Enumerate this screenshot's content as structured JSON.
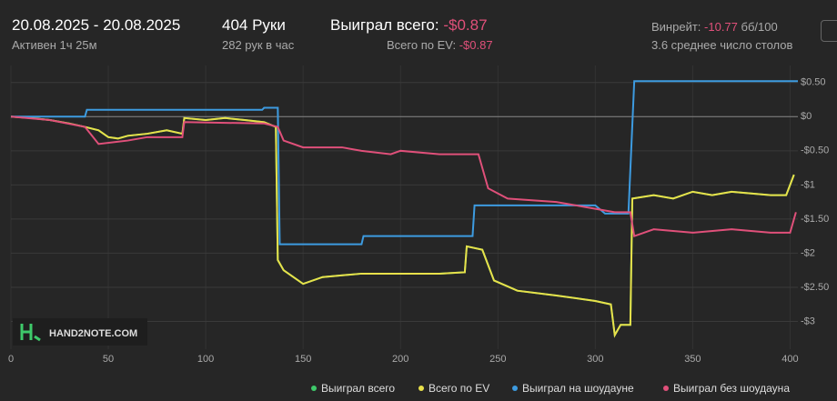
{
  "header": {
    "date_range": "20.08.2025 - 20.08.2025",
    "active": "Активен 1ч 25м",
    "hands": "404 Руки",
    "hands_per_hour": "282 рук в час",
    "won_label": "Выиграл всего:",
    "won_value": "-$0.87",
    "ev_label": "Всего по EV:",
    "ev_value": "-$0.87",
    "winrate_label": "Винрейт:",
    "winrate_value": "-10.77",
    "winrate_unit": "бб/100",
    "tables": "3.6 среднее число столов",
    "logo": "HAND2NOTE.COM"
  },
  "chart_data": {
    "type": "line",
    "xlim": [
      0,
      404
    ],
    "ylim": [
      -3.3,
      0.75
    ],
    "xticks": [
      0,
      50,
      100,
      150,
      200,
      250,
      300,
      350,
      400
    ],
    "yticks": [
      {
        "value": 0.5,
        "label": "$0.50"
      },
      {
        "value": 0,
        "label": "$0"
      },
      {
        "value": -0.5,
        "label": "-$0.50"
      },
      {
        "value": -1,
        "label": "-$1"
      },
      {
        "value": -1.5,
        "label": "-$1.50"
      },
      {
        "value": -2,
        "label": "-$2"
      },
      {
        "value": -2.5,
        "label": "-$2.50"
      },
      {
        "value": -3,
        "label": "-$3"
      }
    ],
    "grid": true,
    "series": [
      {
        "name": "Выиграл всего",
        "color": "#3ec96a",
        "x": [
          0,
          10,
          20,
          30,
          38,
          45,
          50,
          55,
          60,
          70,
          80,
          88,
          89,
          100,
          110,
          120,
          130,
          136,
          137,
          140,
          150,
          160,
          180,
          200,
          220,
          233,
          234,
          242,
          248,
          260,
          280,
          300,
          308,
          310,
          313,
          318,
          319,
          330,
          340,
          350,
          360,
          370,
          390,
          398,
          402
        ],
        "values": [
          0,
          -0.02,
          -0.05,
          -0.1,
          -0.15,
          -0.2,
          -0.3,
          -0.32,
          -0.28,
          -0.25,
          -0.2,
          -0.25,
          -0.02,
          -0.05,
          -0.02,
          -0.05,
          -0.08,
          -0.15,
          -2.1,
          -2.25,
          -2.45,
          -2.35,
          -2.3,
          -2.3,
          -2.3,
          -2.28,
          -1.9,
          -1.95,
          -2.4,
          -2.55,
          -2.62,
          -2.7,
          -2.75,
          -3.2,
          -3.05,
          -3.05,
          -1.2,
          -1.15,
          -1.2,
          -1.1,
          -1.15,
          -1.1,
          -1.15,
          -1.15,
          -0.85
        ]
      },
      {
        "name": "Всего по EV",
        "color": "#e8e04a",
        "x": [
          0,
          10,
          20,
          30,
          38,
          45,
          50,
          55,
          60,
          70,
          80,
          88,
          89,
          100,
          110,
          120,
          130,
          136,
          137,
          140,
          150,
          160,
          180,
          200,
          220,
          233,
          234,
          242,
          248,
          260,
          280,
          300,
          308,
          310,
          313,
          318,
          319,
          330,
          340,
          350,
          360,
          370,
          390,
          398,
          402
        ],
        "values": [
          0,
          -0.02,
          -0.05,
          -0.1,
          -0.15,
          -0.2,
          -0.3,
          -0.32,
          -0.28,
          -0.25,
          -0.2,
          -0.25,
          -0.02,
          -0.05,
          -0.02,
          -0.05,
          -0.08,
          -0.15,
          -2.1,
          -2.25,
          -2.45,
          -2.35,
          -2.3,
          -2.3,
          -2.3,
          -2.28,
          -1.9,
          -1.95,
          -2.4,
          -2.55,
          -2.62,
          -2.7,
          -2.75,
          -3.2,
          -3.05,
          -3.05,
          -1.2,
          -1.15,
          -1.2,
          -1.1,
          -1.15,
          -1.1,
          -1.15,
          -1.15,
          -0.85
        ]
      },
      {
        "name": "Выиграл на шоудауне",
        "color": "#3d9be0",
        "x": [
          0,
          38,
          39,
          129,
          130,
          137,
          138,
          180,
          181,
          237,
          238,
          300,
          305,
          317,
          320,
          350,
          404
        ],
        "values": [
          0,
          0,
          0.1,
          0.1,
          0.13,
          0.13,
          -1.87,
          -1.87,
          -1.75,
          -1.75,
          -1.3,
          -1.3,
          -1.42,
          -1.42,
          0.52,
          0.52,
          0.52
        ]
      },
      {
        "name": "Выиграл без шоудауна",
        "color": "#e0507a",
        "x": [
          0,
          20,
          38,
          45,
          60,
          70,
          80,
          88,
          89,
          130,
          137,
          140,
          150,
          160,
          170,
          180,
          195,
          200,
          220,
          240,
          245,
          255,
          280,
          300,
          310,
          318,
          320,
          330,
          350,
          370,
          390,
          400,
          403
        ],
        "values": [
          0,
          -0.05,
          -0.15,
          -0.4,
          -0.35,
          -0.3,
          -0.3,
          -0.3,
          -0.08,
          -0.1,
          -0.15,
          -0.35,
          -0.45,
          -0.45,
          -0.45,
          -0.5,
          -0.55,
          -0.5,
          -0.55,
          -0.55,
          -1.05,
          -1.2,
          -1.25,
          -1.35,
          -1.4,
          -1.4,
          -1.75,
          -1.65,
          -1.7,
          -1.65,
          -1.7,
          -1.7,
          -1.4
        ]
      }
    ]
  }
}
